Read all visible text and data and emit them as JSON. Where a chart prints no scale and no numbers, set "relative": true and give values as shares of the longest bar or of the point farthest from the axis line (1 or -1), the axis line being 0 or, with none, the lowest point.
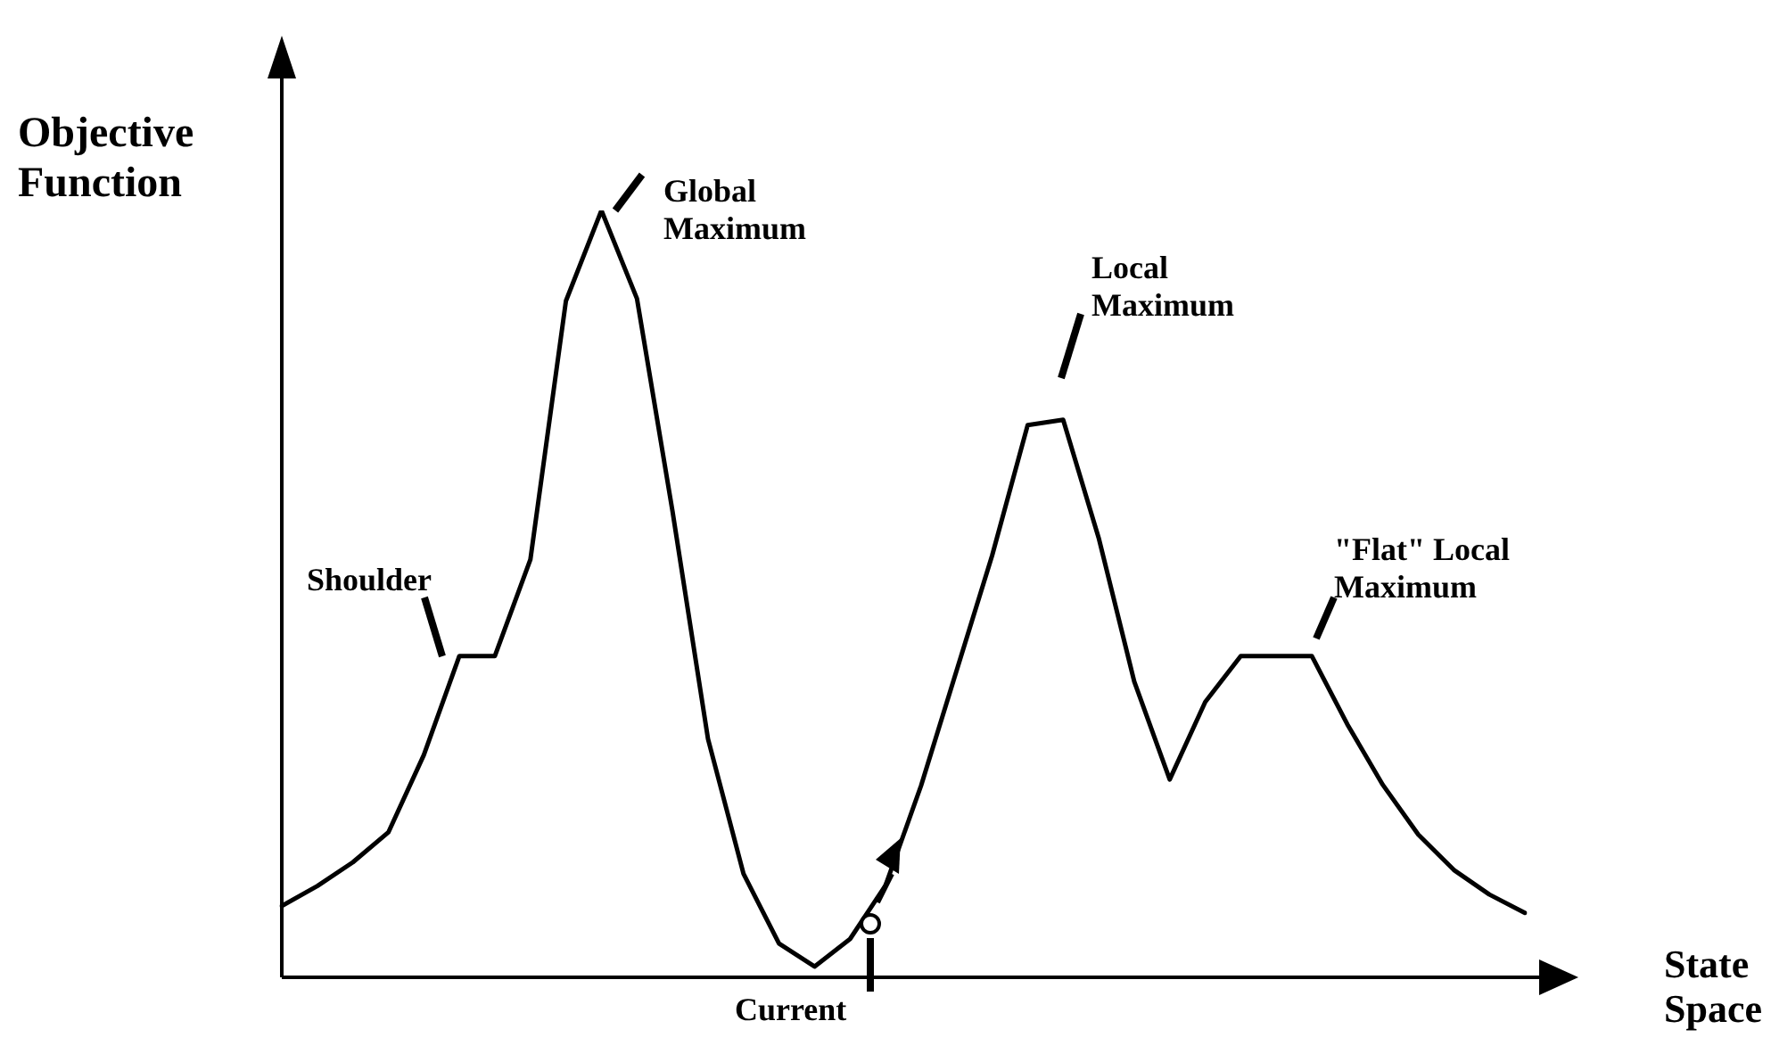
{
  "chart_data": {
    "type": "line",
    "relative": true,
    "xlabel": "State Space",
    "ylabel": "Objective Function",
    "color": "#000000",
    "tick_labels": false,
    "grid": false,
    "legend": false,
    "marker": "none",
    "line_style": "solid",
    "categories": [
      null,
      null,
      null,
      null,
      null,
      null,
      null,
      null,
      null,
      null,
      null,
      null,
      null,
      null,
      null,
      null,
      null,
      null,
      null,
      null,
      null,
      null,
      null,
      null,
      null,
      null,
      null,
      null,
      null,
      null,
      null,
      null,
      null,
      null,
      null,
      null
    ],
    "values": [
      0.093,
      0.119,
      0.15,
      0.189,
      0.29,
      0.419,
      0.419,
      0.545,
      0.882,
      1,
      0.885,
      0.608,
      0.311,
      0.135,
      0.044,
      0.014,
      0.05,
      0.12,
      0.25,
      0.4,
      0.55,
      0.72,
      0.727,
      0.573,
      0.386,
      0.258,
      0.359,
      0.419,
      0.419,
      0.419,
      0.33,
      0.251,
      0.186,
      0.14,
      0.108,
      0.084
    ],
    "annotations": [
      "Global Maximum",
      "Local Maximum",
      "Shoulder",
      "\"Flat\" Local Maximum",
      "Current"
    ]
  }
}
